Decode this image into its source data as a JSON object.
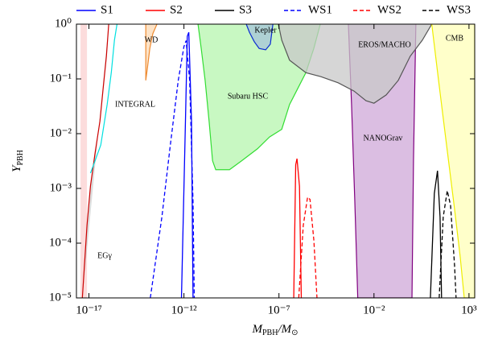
{
  "chart_data": {
    "type": "line",
    "x_label": [
      "M",
      "PBH",
      "/M",
      "⊙"
    ],
    "y_label": [
      "Y",
      "PBH"
    ],
    "xscale": "log",
    "yscale": "log",
    "xlim": [
      2.2e-18,
      2000
    ],
    "ylim": [
      1e-05,
      1
    ],
    "xticks": [
      {
        "value": 1e-17,
        "label": "10⁻¹⁷"
      },
      {
        "value": 1e-12,
        "label": "10⁻¹²"
      },
      {
        "value": 1e-07,
        "label": "10⁻⁷"
      },
      {
        "value": 0.01,
        "label": "10⁻²"
      },
      {
        "value": 1000,
        "label": "10³"
      }
    ],
    "yticks": [
      {
        "value": 1,
        "label": "10⁰"
      },
      {
        "value": 0.1,
        "label": "10⁻¹"
      },
      {
        "value": 0.01,
        "label": "10⁻²"
      },
      {
        "value": 0.001,
        "label": "10⁻³"
      },
      {
        "value": 0.0001,
        "label": "10⁻⁴"
      },
      {
        "value": 1e-05,
        "label": "10⁻⁵"
      }
    ],
    "legend": "top",
    "series": [
      {
        "name": "S1",
        "color": "#0000ff",
        "linestyle": "solid",
        "x": [
          7.4e-13,
          1.2e-12,
          1.5e-12,
          1.8e-12,
          2.5e-12,
          3e-12
        ],
        "values": [
          1e-05,
          0.017,
          0.6,
          0.71,
          0.017,
          1e-05
        ]
      },
      {
        "name": "S2",
        "color": "#ff0000",
        "linestyle": "solid",
        "x": [
          6e-07,
          7.6e-07,
          8.9e-07,
          1.2e-06,
          1.5e-06
        ],
        "values": [
          1e-05,
          0.0027,
          0.0035,
          0.0011,
          1e-05
        ]
      },
      {
        "name": "S3",
        "color": "#000000",
        "linestyle": "solid",
        "x": [
          9.3,
          15,
          22,
          30,
          36
        ],
        "values": [
          1e-05,
          0.00081,
          0.0021,
          0.0003,
          1e-05
        ]
      },
      {
        "name": "WS1",
        "color": "#0000ff",
        "linestyle": "dashed",
        "x": [
          1.7e-14,
          6.9e-14,
          1.9e-13,
          5e-13,
          1e-12,
          1.3e-12,
          2e-12,
          3e-12,
          3.5e-12
        ],
        "values": [
          1e-05,
          0.0003,
          0.006,
          0.093,
          0.39,
          0.5,
          0.093,
          0.00058,
          1e-05
        ]
      },
      {
        "name": "WS2",
        "color": "#ff0000",
        "linestyle": "dashed",
        "x": [
          1.1e-06,
          1.9e-06,
          3.2e-06,
          4.3e-06,
          6.9e-06,
          1e-05
        ],
        "values": [
          1e-05,
          0.00021,
          0.00069,
          0.00063,
          0.00011,
          1e-05
        ]
      },
      {
        "name": "WS3",
        "color": "#000000",
        "linestyle": "dashed",
        "x": [
          27,
          44,
          72,
          107,
          174,
          209
        ],
        "values": [
          1e-05,
          0.0003,
          0.00091,
          0.00049,
          3.9e-05,
          1e-05
        ]
      }
    ],
    "regions": [
      {
        "fill": "#fbd0d0",
        "stroke": "none",
        "x": [
          3.6e-18,
          3.6e-18,
          7.9e-18,
          7.9e-18
        ],
        "values": [
          1e-05,
          1,
          1,
          1e-05
        ]
      },
      {
        "name": "EGγ",
        "fill": "#d0d0d0",
        "stroke": "#cc0000",
        "x": [
          1.1e-16,
          8.3e-17,
          5.6e-17,
          3.8e-17,
          2.1e-17,
          1.2e-17,
          7.9e-18,
          4.5e-18
        ],
        "values": [
          1,
          0.26,
          0.067,
          0.017,
          0.0044,
          0.0011,
          0.00021,
          1e-05
        ]
      },
      {
        "name": "INTEGRAL",
        "fill": "none",
        "stroke": "#00e0e0",
        "x": [
          1.2e-17,
          2.1e-17,
          4.2e-17,
          9.1e-17,
          1.5e-16,
          2.2e-16,
          3e-16
        ],
        "values": [
          0.0019,
          0.0032,
          0.0062,
          0.034,
          0.13,
          0.51,
          1
        ]
      },
      {
        "name": "WD",
        "fill": "#fcd9b4",
        "stroke": "#ee8a30",
        "x": [
          9.8e-15,
          9.8e-15,
          1.2e-14,
          1.6e-14,
          2.3e-14,
          3.8e-14
        ],
        "values": [
          1,
          0.094,
          0.16,
          0.36,
          0.67,
          1
        ]
      },
      {
        "name": "Subaru HSC",
        "fill": "#b5f5ae",
        "stroke": "#33dd33",
        "x": [
          5.5e-12,
          8.1e-12,
          1.3e-11,
          2.1e-11,
          3.2e-11,
          4.7e-11,
          2.5e-10,
          1.1e-09,
          7.4e-09,
          3.2e-08,
          1.4e-07,
          3.6e-07,
          9.8e-07,
          2.6e-06,
          6.8e-06,
          1.5e-05
        ],
        "values": [
          1,
          0.36,
          0.094,
          0.017,
          0.0032,
          0.0022,
          0.0022,
          0.0032,
          0.0053,
          0.0087,
          0.012,
          0.034,
          0.067,
          0.13,
          0.36,
          1
        ]
      },
      {
        "name": "NANOGrav",
        "fill": "#cfa8d8",
        "stroke": "#800080",
        "x": [
          0.00045,
          0.00066,
          0.00098,
          0.0014,
          1,
          1.2,
          1.6
        ],
        "values": [
          1,
          0.034,
          0.00058,
          1e-05,
          1e-05,
          0.0032,
          1
        ]
      },
      {
        "name": "EROS/MACHO",
        "fill": "#c8c8c8",
        "stroke": "#555555",
        "x": [
          9.3e-08,
          1.4e-07,
          3.6e-07,
          2.6e-06,
          1.6e-05,
          0.00013,
          0.00089,
          0.0038,
          0.01,
          0.044,
          0.19,
          0.81,
          3.5,
          11
        ],
        "values": [
          1,
          0.51,
          0.22,
          0.13,
          0.11,
          0.085,
          0.06,
          0.04,
          0.036,
          0.051,
          0.094,
          0.26,
          0.51,
          1
        ]
      },
      {
        "name": "Kepler",
        "fill": "#a6c4da",
        "stroke": "#0a2bd1",
        "x": [
          1.9e-09,
          2.8e-09,
          5e-09,
          9.1e-09,
          2e-08,
          3.5e-08,
          4.8e-08
        ],
        "values": [
          1,
          0.71,
          0.48,
          0.36,
          0.34,
          0.43,
          1
        ]
      },
      {
        "name": "CMB",
        "fill": "#ffffb8",
        "stroke": "#eeee00",
        "x": [
          11,
          25,
          66,
          174,
          347,
          562,
          2000,
          2000
        ],
        "values": [
          1,
          0.094,
          0.0062,
          0.00042,
          5.5e-05,
          1e-05,
          1e-05,
          1
        ]
      }
    ]
  }
}
